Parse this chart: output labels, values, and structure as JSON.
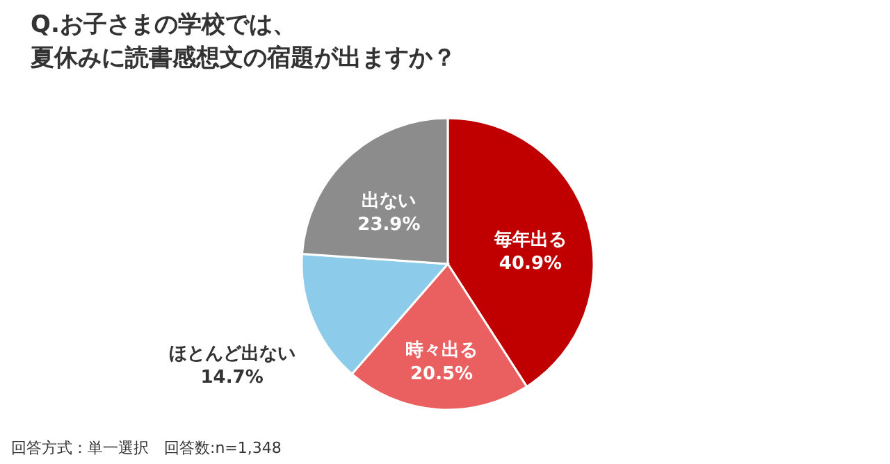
{
  "chart_data": {
    "type": "pie",
    "title": "Q.お子さまの学校では、夏休みに読書感想文の宿題が出ますか？",
    "categories": [
      "毎年出る",
      "時々出る",
      "ほとんど出ない",
      "出ない"
    ],
    "values": [
      40.9,
      20.5,
      14.7,
      23.9
    ],
    "value_labels": [
      "40.9%",
      "20.5%",
      "14.7%",
      "23.9%"
    ],
    "colors": [
      "#c00000",
      "#ea5f5f",
      "#8dcbeb",
      "#8c8c8c"
    ],
    "annotations": [
      "回答方式：単一選択　回答数:n=1,348"
    ]
  }
}
